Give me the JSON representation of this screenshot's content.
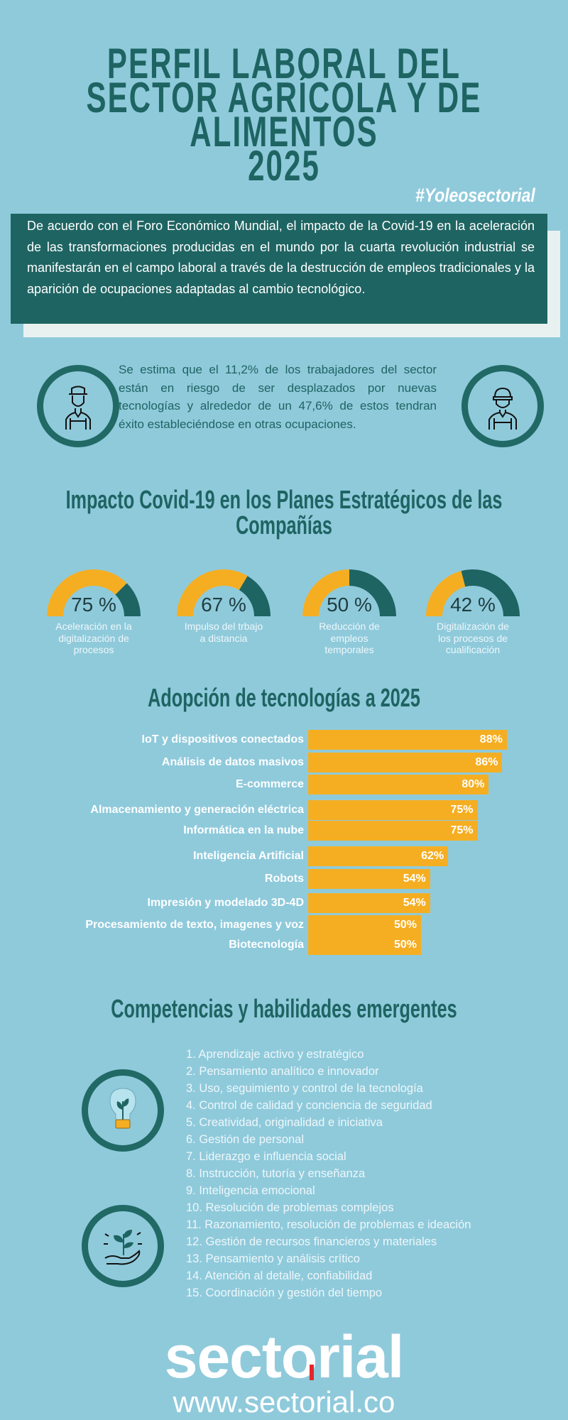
{
  "header": {
    "title_lines": [
      "PERFIL LABORAL DEL",
      "SECTOR AGRÍCOLA Y DE",
      "ALIMENTOS",
      "2025"
    ],
    "hashtag": "#Yoleosectorial"
  },
  "intro": {
    "text": "De acuerdo con el Foro Económico Mundial, el impacto de la Covid-19 en la aceleración de las transformaciones producidas en el mundo por la cuarta revolución industrial se manifestarán en el campo laboral a través de la destrucción de empleos tradicionales y la aparición de ocupaciones adaptadas al cambio tecnológico."
  },
  "workers": {
    "left_icon": "farmer-icon",
    "right_icon": "worker-cap-icon",
    "text": "Se estima que el 11,2% de los trabajadores del sector están en riesgo de ser desplazados por nuevas tecnologías y alrededor de un 47,6% de estos tendran éxito estableciéndose en otras ocupaciones."
  },
  "impact": {
    "title": "Impacto Covid-19 en los Planes Estratégicos de las Compañías",
    "gauges": [
      {
        "value": 75,
        "label_text": "75 %",
        "caption": "Aceleración en la digitalización de procesos"
      },
      {
        "value": 67,
        "label_text": "67 %",
        "caption": "Impulso del trbajo a distancia"
      },
      {
        "value": 50,
        "label_text": "50 %",
        "caption": "Reducción de empleos temporales"
      },
      {
        "value": 42,
        "label_text": "42 %",
        "caption": "Digitalización de los procesos de cualificación"
      }
    ]
  },
  "chart_data": {
    "type": "bar",
    "title": "Adopción de tecnologías a 2025",
    "orientation": "horizontal",
    "categories": [
      "IoT y dispositivos conectados",
      "Análisis de datos masivos",
      "E-commerce",
      "Almacenamiento y generación eléctrica",
      "Informática en la nube",
      "Inteligencia Artificial",
      "Robots",
      "Impresión y modelado 3D-4D",
      "Procesamiento de texto, imagenes y voz",
      "Biotecnología"
    ],
    "values": [
      88,
      86,
      80,
      75,
      75,
      62,
      54,
      54,
      50,
      50
    ],
    "value_labels": [
      "88%",
      "86%",
      "80%",
      "75%",
      "75%",
      "62%",
      "54%",
      "54%",
      "50%",
      "50%"
    ],
    "xlim": [
      0,
      100
    ],
    "grid": false
  },
  "skills": {
    "title": "Competencias y habilidades emergentes",
    "icons": [
      "lightbulb-plant-icon",
      "hand-plant-icon"
    ],
    "items": [
      "1. Aprendizaje activo y estratégico",
      "2. Pensamiento analítico e innovador",
      "3. Uso, seguimiento y control de la tecnología",
      "4. Control de calidad y conciencia de seguridad",
      "5. Creatividad, originalidad e iniciativa",
      "6. Gestión de personal",
      "7. Liderazgo e influencia social",
      "8. Instrucción, tutoría y enseñanza",
      "9. Inteligencia emocional",
      "10. Resolución de problemas complejos",
      "11. Razonamiento, resolución de problemas e ideación",
      "12. Gestión de recursos financieros y materiales",
      "13. Pensamiento y análisis crítico",
      "14. Atención al detalle, confiabilidad",
      "15. Coordinación y gestión del tiempo"
    ]
  },
  "footer": {
    "logo": "sectorial",
    "url": "www.sectorial.co"
  },
  "colors": {
    "background": "#8fcadb",
    "teal": "#1e6462",
    "accent_yellow": "#f5ae22",
    "text_light": "#ffffff",
    "logo_red": "#e3262b"
  }
}
